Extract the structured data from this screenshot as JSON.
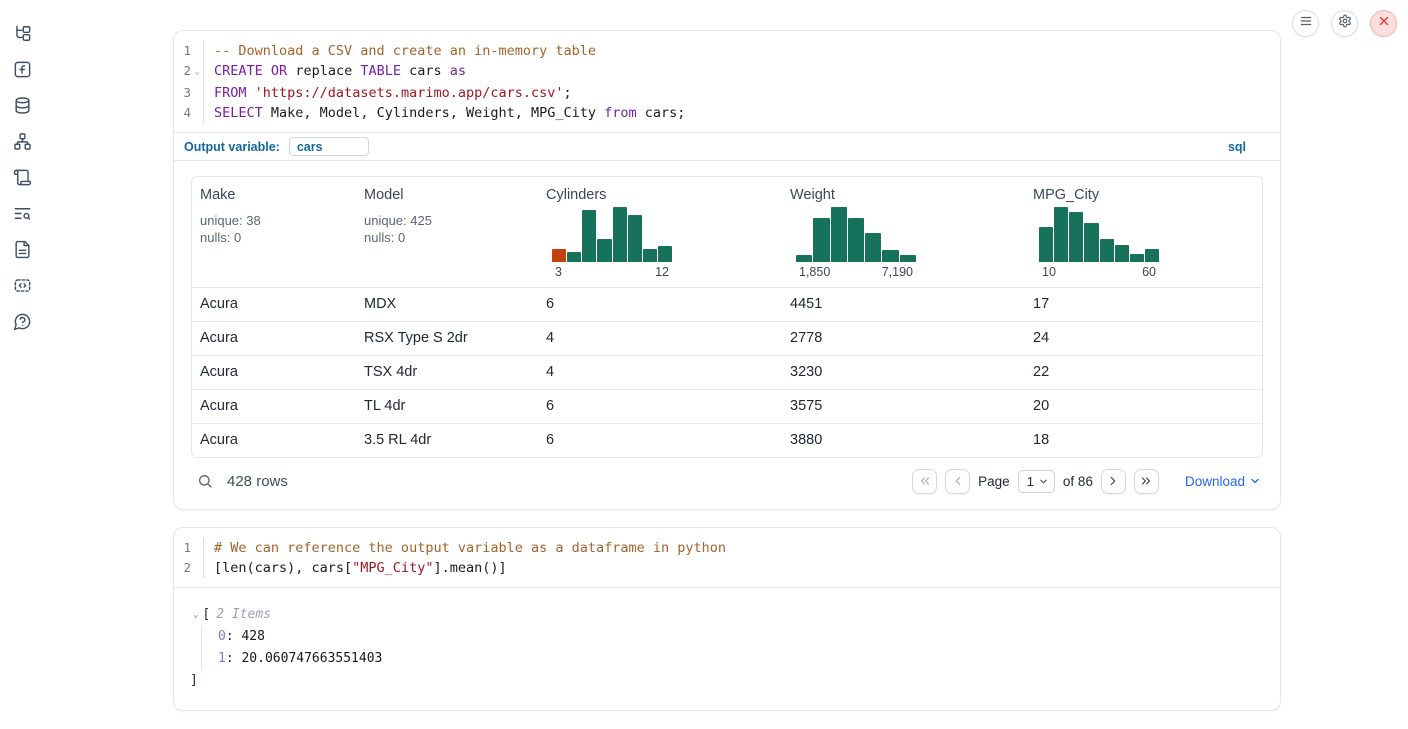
{
  "colors": {
    "hist_green": "#17725c",
    "hist_orange": "#c2410c",
    "accent_blue": "#1168a0",
    "link_blue": "#2563eb"
  },
  "sidebar": {
    "icons": [
      "file-tree",
      "function",
      "datasources",
      "dependency-graph",
      "scripts",
      "logs",
      "documentation",
      "outputs",
      "help"
    ]
  },
  "window_controls": {
    "buttons": [
      "menu",
      "settings",
      "close"
    ]
  },
  "sql_cell": {
    "code": [
      {
        "num": "1",
        "fold": false,
        "tokens": [
          [
            "comment",
            "-- Download a CSV and create an in-memory table"
          ]
        ]
      },
      {
        "num": "2",
        "fold": true,
        "tokens": [
          [
            "kw",
            "CREATE"
          ],
          [
            "plain",
            " "
          ],
          [
            "kw",
            "OR"
          ],
          [
            "plain",
            " replace "
          ],
          [
            "kw",
            "TABLE"
          ],
          [
            "plain",
            " cars "
          ],
          [
            "kw",
            "as"
          ]
        ]
      },
      {
        "num": "3",
        "fold": false,
        "tokens": [
          [
            "kw",
            "FROM"
          ],
          [
            "plain",
            " "
          ],
          [
            "str",
            "'https://datasets.marimo.app/cars.csv'"
          ],
          [
            "plain",
            ";"
          ]
        ]
      },
      {
        "num": "4",
        "fold": false,
        "tokens": [
          [
            "kw",
            "SELECT"
          ],
          [
            "plain",
            " Make, Model, Cylinders, Weight, MPG_City "
          ],
          [
            "kw",
            "from"
          ],
          [
            "plain",
            " cars;"
          ]
        ]
      }
    ],
    "output_variable_label": "Output variable:",
    "output_variable_value": "cars",
    "language_badge": "sql"
  },
  "table": {
    "columns": [
      {
        "name": "Make",
        "type": "text",
        "unique": "unique: 38",
        "nulls": "nulls: 0"
      },
      {
        "name": "Model",
        "type": "text",
        "unique": "unique: 425",
        "nulls": "nulls: 0"
      },
      {
        "name": "Cylinders",
        "type": "hist",
        "min_label": "3",
        "max_label": "12",
        "bars": [
          23,
          18,
          94,
          41,
          100,
          86,
          24,
          30
        ],
        "first_bar_orange": true
      },
      {
        "name": "Weight",
        "type": "hist",
        "min_label": "1,850",
        "max_label": "7,190",
        "bars": [
          13,
          80,
          100,
          80,
          53,
          21,
          13
        ],
        "first_bar_orange": false
      },
      {
        "name": "MPG_City",
        "type": "hist",
        "min_label": "10",
        "max_label": "60",
        "bars": [
          64,
          100,
          91,
          71,
          42,
          31,
          15,
          23
        ],
        "first_bar_orange": false
      }
    ],
    "rows": [
      [
        "Acura",
        "MDX",
        "6",
        "4451",
        "17"
      ],
      [
        "Acura",
        "RSX Type S 2dr",
        "4",
        "2778",
        "24"
      ],
      [
        "Acura",
        "TSX 4dr",
        "4",
        "3230",
        "22"
      ],
      [
        "Acura",
        "TL 4dr",
        "6",
        "3575",
        "20"
      ],
      [
        "Acura",
        "3.5 RL 4dr",
        "6",
        "3880",
        "18"
      ]
    ],
    "footer": {
      "row_count": "428 rows",
      "page_label": "Page",
      "page_value": "1",
      "page_total": "of 86",
      "download_label": "Download"
    }
  },
  "python_cell": {
    "code": [
      {
        "num": "1",
        "fold": false,
        "tokens": [
          [
            "comment",
            "# We can reference the output variable as a dataframe in python"
          ]
        ]
      },
      {
        "num": "2",
        "fold": false,
        "tokens": [
          [
            "plain",
            "[len(cars), cars["
          ],
          [
            "str",
            "\"MPG_City\""
          ],
          [
            "plain",
            "].mean()]"
          ]
        ]
      }
    ],
    "output": {
      "open_bracket": "[",
      "items_label": "2 Items",
      "items": [
        {
          "key": "0",
          "value": "428"
        },
        {
          "key": "1",
          "value": "20.060747663551403"
        }
      ],
      "close_bracket": "]"
    }
  }
}
